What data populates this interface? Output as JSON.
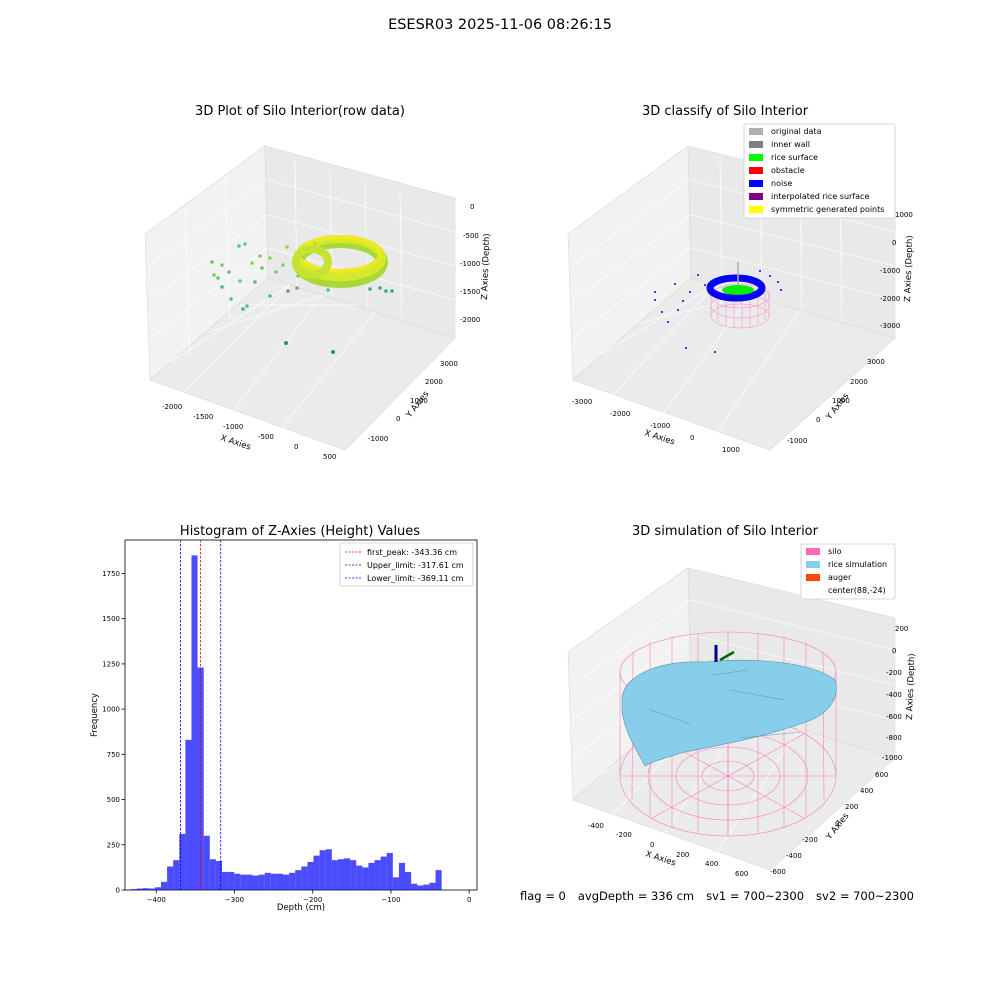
{
  "figure": {
    "suptitle": "ESESR03 2025-11-06 08:26:15"
  },
  "panels": {
    "raw": {
      "title": "3D Plot of Silo Interior(row data)",
      "xlabel": "X Axies",
      "ylabel": "Y Axies",
      "zlabel": "Z Axies (Depth)",
      "xticks": [
        "-2000",
        "-1500",
        "-1000",
        "-500",
        "0",
        "500"
      ],
      "yticks": [
        "-1000",
        "0",
        "1000",
        "2000",
        "3000"
      ],
      "zticks": [
        "0",
        "-500",
        "-1000",
        "-1500",
        "-2000"
      ]
    },
    "classify": {
      "title": "3D classify of Silo Interior",
      "xlabel": "X Axies",
      "ylabel": "Y Axies",
      "zlabel": "Z Axies (Depth)",
      "xticks": [
        "-3000",
        "-2000",
        "-1000",
        "0",
        "1000"
      ],
      "yticks": [
        "-1000",
        "0",
        "1000",
        "2000",
        "3000"
      ],
      "zticks": [
        "1000",
        "0",
        "-1000",
        "-2000",
        "-3000"
      ],
      "legend": [
        {
          "label": "original data",
          "color": "#b0b0b0"
        },
        {
          "label": "inner wall",
          "color": "#808080"
        },
        {
          "label": "rice surface",
          "color": "#00ff00"
        },
        {
          "label": "obstacle",
          "color": "#ff0000"
        },
        {
          "label": "noise",
          "color": "#0000ff"
        },
        {
          "label": "interpolated rice surface",
          "color": "#800080"
        },
        {
          "label": "symmetric generated points",
          "color": "#ffff00"
        }
      ]
    },
    "simulation": {
      "title": "3D simulation of Silo Interior",
      "xlabel": "X Axies",
      "ylabel": "Y Axies",
      "zlabel": "Z Axies (Depth)",
      "xticks": [
        "-400",
        "-200",
        "0",
        "200",
        "400",
        "600"
      ],
      "yticks": [
        "-600",
        "-400",
        "-200",
        "0",
        "200",
        "400",
        "600"
      ],
      "zticks": [
        "200",
        "0",
        "-200",
        "-400",
        "-600",
        "-800",
        "-1000"
      ],
      "legend": [
        {
          "label": "silo",
          "color": "#ff69b4"
        },
        {
          "label": "rice simulation",
          "color": "#87ceeb"
        },
        {
          "label": "auger",
          "color": "#ff4500"
        },
        {
          "label": "center(88,-24)",
          "color": ""
        }
      ]
    }
  },
  "chart_data": {
    "type": "bar",
    "title": "Histogram of Z-Axies (Height) Values",
    "xlabel": "Depth (cm)",
    "ylabel": "Frequency",
    "xlim": [
      -440,
      10
    ],
    "ylim": [
      0,
      1935
    ],
    "xticks": [
      -400,
      -300,
      -200,
      -100,
      0
    ],
    "yticks": [
      0,
      250,
      500,
      750,
      1000,
      1250,
      1500,
      1750
    ],
    "bin_start": -433,
    "bin_width": 7.8,
    "counts": [
      5,
      8,
      10,
      8,
      15,
      45,
      130,
      165,
      310,
      830,
      1850,
      1230,
      300,
      170,
      160,
      100,
      100,
      90,
      85,
      85,
      80,
      85,
      95,
      90,
      90,
      85,
      95,
      110,
      130,
      155,
      190,
      220,
      225,
      165,
      170,
      175,
      165,
      135,
      125,
      150,
      165,
      185,
      205,
      70,
      150,
      100,
      35,
      25,
      30,
      40,
      110
    ],
    "color": "#0000ff",
    "lines": [
      {
        "label": "first_peak: -343.36 cm",
        "x": -343.36,
        "color": "#ff0000"
      },
      {
        "label": "Upper_limit: -317.61 cm",
        "x": -317.61,
        "color": "#0000ff"
      },
      {
        "label": "Lower_limit: -369.11 cm",
        "x": -369.11,
        "color": "#0000ff"
      }
    ],
    "legend_position": "top-right"
  },
  "status": {
    "flag": "flag = 0",
    "avg_depth": "avgDepth = 336 cm",
    "sv1": "sv1 = 700~2300",
    "sv2": "sv2 = 700~2300"
  }
}
